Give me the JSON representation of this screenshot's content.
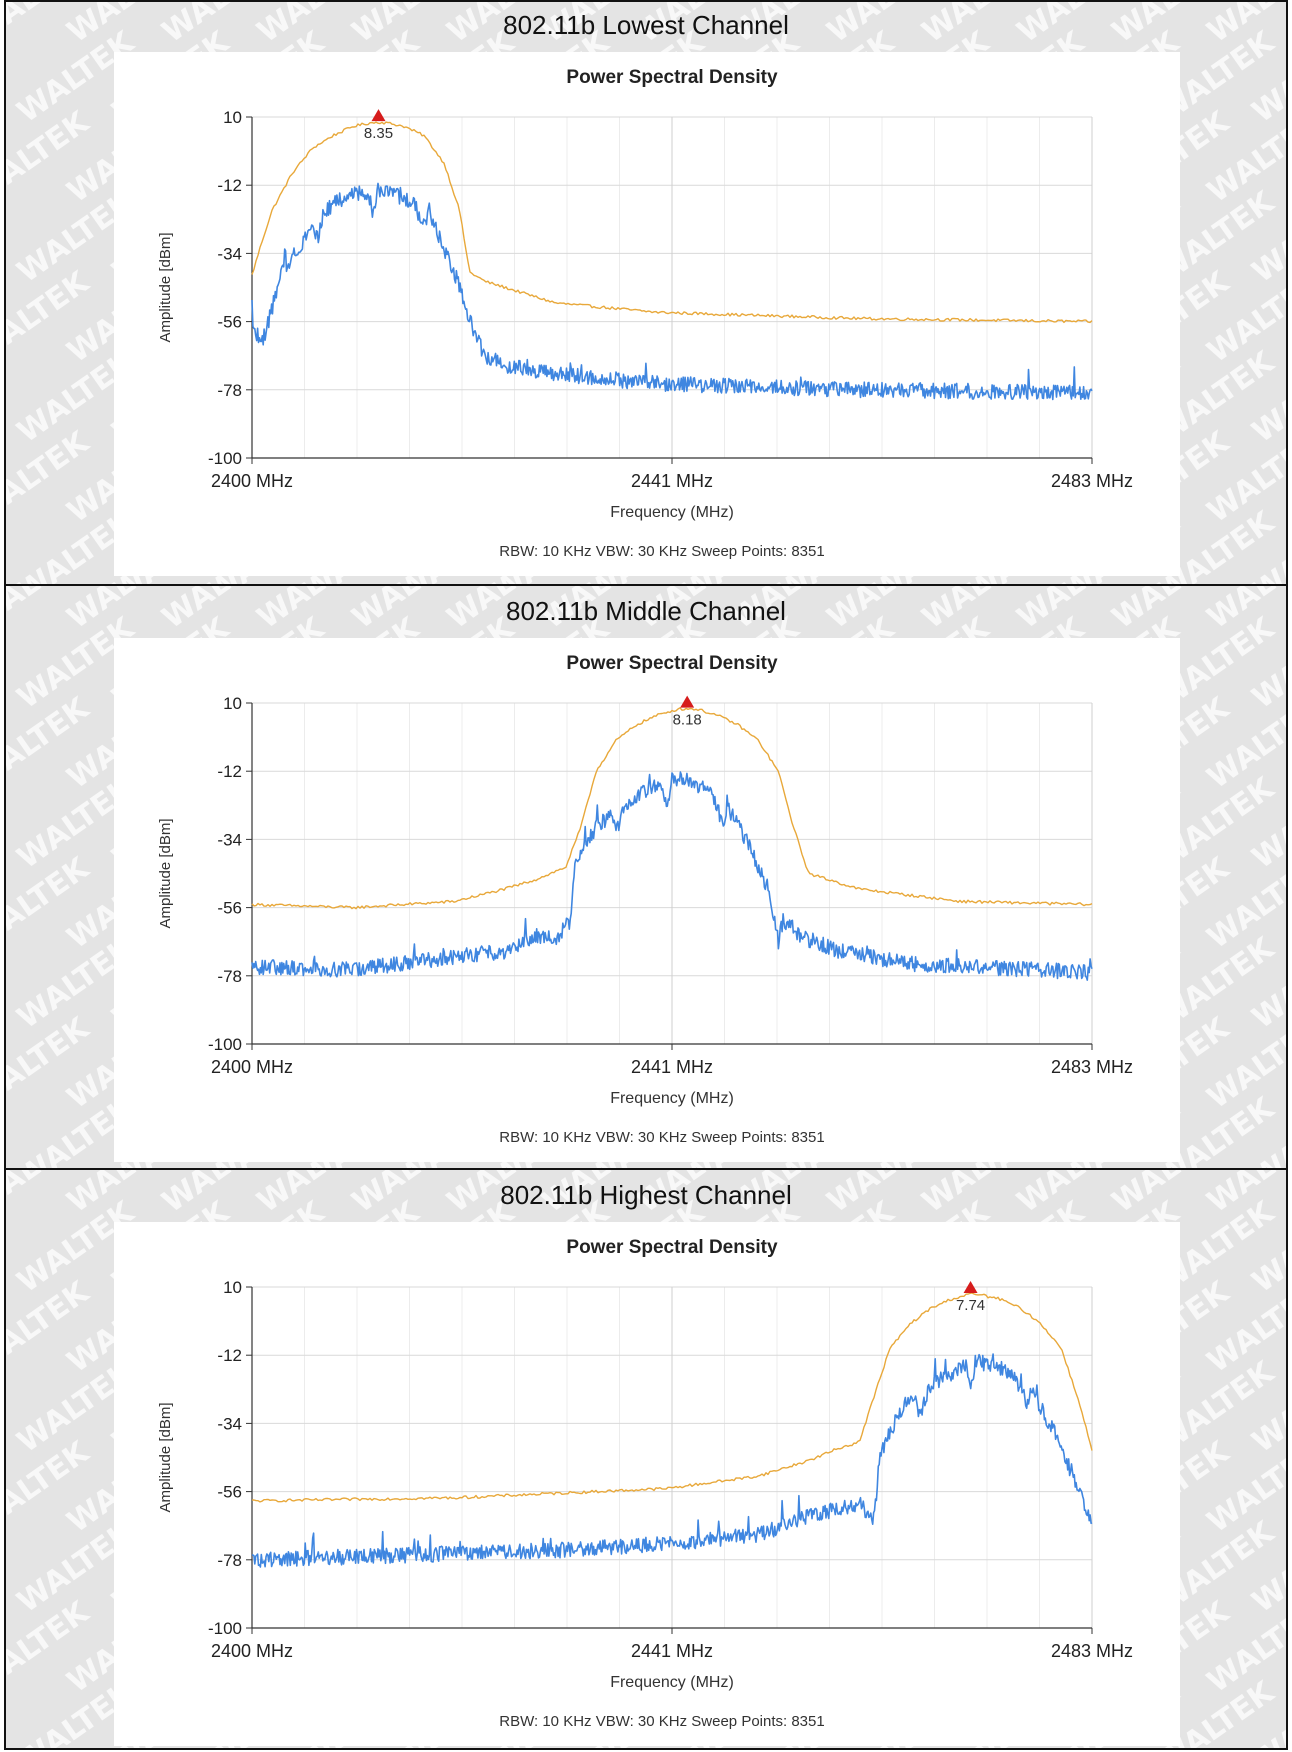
{
  "watermark": "WALTEK",
  "colors": {
    "trace_max": "#e8a83a",
    "trace_live": "#3f86e0",
    "marker": "#d61c1c",
    "grid": "#d9d9d9",
    "axis": "#333333"
  },
  "chart_data": [
    {
      "type": "line",
      "section_title": "802.11b Lowest Channel",
      "title": "Power Spectral Density",
      "xlabel": "Frequency (MHz)",
      "ylabel": "Amplitude [dBm]",
      "xlim": [
        2400,
        2483
      ],
      "ylim": [
        -100,
        10
      ],
      "x_ticks": [
        "2400 MHz",
        "2441 MHz",
        "2483 MHz"
      ],
      "y_ticks": [
        "10",
        "-12",
        "-34",
        "-56",
        "-78",
        "-100"
      ],
      "y_tick_values": [
        10,
        -12,
        -34,
        -56,
        -78,
        -100
      ],
      "footer": "RBW: 10 KHz    VBW: 30 KHz    Sweep Points: 8351",
      "marker": {
        "x": 2412.5,
        "y": 8.35,
        "label": "8.35"
      },
      "series": [
        {
          "x": [
            2400,
            2401,
            2402,
            2404,
            2406,
            2408,
            2410,
            2411.5,
            2412.5,
            2413.5,
            2415,
            2417,
            2419,
            2420.5,
            2421.5,
            2423,
            2426,
            2430,
            2440,
            2460,
            2483
          ],
          "values": [
            -41,
            -30,
            -20,
            -8,
            0,
            4,
            7,
            8,
            8.35,
            8,
            7,
            4,
            -5,
            -20,
            -40,
            -43,
            -46,
            -50,
            -53,
            -55,
            -56
          ]
        },
        {
          "x": [
            2400,
            2401,
            2403,
            2405,
            2406,
            2406.5,
            2407,
            2408,
            2410,
            2411.5,
            2412,
            2412.5,
            2413,
            2414,
            2416,
            2417,
            2417.5,
            2418,
            2420,
            2422,
            2423,
            2425,
            2430,
            2440,
            2460,
            2483
          ],
          "values": [
            -57,
            -63,
            -40,
            -30,
            -25,
            -29,
            -22,
            -18,
            -15,
            -14,
            -22,
            -13,
            -14,
            -15,
            -18,
            -25,
            -20,
            -25,
            -40,
            -60,
            -67,
            -70,
            -73,
            -76,
            -78,
            -79
          ]
        }
      ]
    },
    {
      "type": "line",
      "section_title": "802.11b Middle Channel",
      "title": "Power Spectral Density",
      "xlabel": "Frequency (MHz)",
      "ylabel": "Amplitude [dBm]",
      "xlim": [
        2400,
        2483
      ],
      "ylim": [
        -100,
        10
      ],
      "x_ticks": [
        "2400 MHz",
        "2441 MHz",
        "2483 MHz"
      ],
      "y_ticks": [
        "10",
        "-12",
        "-34",
        "-56",
        "-78",
        "-100"
      ],
      "y_tick_values": [
        10,
        -12,
        -34,
        -56,
        -78,
        -100
      ],
      "footer": "RBW: 10 KHz    VBW: 30 KHz    Sweep Points: 8351",
      "marker": {
        "x": 2443,
        "y": 8.18,
        "label": "8.18"
      },
      "series": [
        {
          "x": [
            2400,
            2410,
            2420,
            2425,
            2428,
            2431,
            2432.5,
            2434,
            2436,
            2438,
            2440,
            2442,
            2443,
            2444,
            2446,
            2448,
            2450,
            2452,
            2453.5,
            2455,
            2460,
            2470,
            2483
          ],
          "values": [
            -55,
            -56,
            -54,
            -50,
            -47,
            -43,
            -30,
            -12,
            -2,
            3,
            6,
            8,
            8.18,
            8,
            6,
            3,
            -2,
            -12,
            -30,
            -45,
            -50,
            -54,
            -55
          ]
        },
        {
          "x": [
            2400,
            2410,
            2420,
            2425,
            2428,
            2430,
            2431.5,
            2432,
            2434,
            2435.5,
            2436,
            2437,
            2439,
            2440.5,
            2441,
            2441.5,
            2443,
            2445,
            2446,
            2446.5,
            2447,
            2449,
            2451,
            2452,
            2452.5,
            2454,
            2458,
            2465,
            2483
          ],
          "values": [
            -75,
            -76,
            -72,
            -70,
            -65,
            -66,
            -60,
            -40,
            -30,
            -26,
            -32,
            -22,
            -18,
            -16,
            -24,
            -14,
            -15,
            -18,
            -23,
            -30,
            -24,
            -35,
            -50,
            -67,
            -60,
            -65,
            -70,
            -74,
            -77
          ]
        }
      ]
    },
    {
      "type": "line",
      "section_title": "802.11b Highest Channel",
      "title": "Power Spectral Density",
      "xlabel": "Frequency (MHz)",
      "ylabel": "Amplitude [dBm]",
      "xlim": [
        2400,
        2483
      ],
      "ylim": [
        -100,
        10
      ],
      "x_ticks": [
        "2400 MHz",
        "2441 MHz",
        "2483 MHz"
      ],
      "y_ticks": [
        "10",
        "-12",
        "-34",
        "-56",
        "-78",
        "-100"
      ],
      "y_tick_values": [
        10,
        -12,
        -34,
        -56,
        -78,
        -100
      ],
      "footer": "RBW: 10 KHz    VBW: 30 KHz    Sweep Points: 8351",
      "marker": {
        "x": 2471,
        "y": 7.74,
        "label": "7.74"
      },
      "series": [
        {
          "x": [
            2400,
            2420,
            2441,
            2450,
            2455,
            2458,
            2460,
            2461.5,
            2463,
            2465,
            2467,
            2469,
            2471,
            2472,
            2474,
            2476,
            2478,
            2480,
            2482,
            2483
          ],
          "values": [
            -59,
            -58,
            -55,
            -51,
            -46,
            -42,
            -40,
            -25,
            -10,
            -2,
            3,
            6,
            7.74,
            7.5,
            6,
            3,
            -2,
            -10,
            -30,
            -43
          ]
        },
        {
          "x": [
            2400,
            2410,
            2420,
            2430,
            2440,
            2450,
            2455,
            2460,
            2461.5,
            2462,
            2464,
            2465.5,
            2466,
            2467,
            2469,
            2470.5,
            2471,
            2471.5,
            2473,
            2475,
            2476,
            2476.5,
            2477,
            2479,
            2481,
            2483
          ],
          "values": [
            -78,
            -77,
            -76,
            -75,
            -73,
            -70,
            -64,
            -60,
            -65,
            -45,
            -30,
            -25,
            -32,
            -22,
            -18,
            -15,
            -22,
            -14,
            -15,
            -18,
            -23,
            -30,
            -24,
            -35,
            -50,
            -67
          ]
        }
      ]
    }
  ]
}
